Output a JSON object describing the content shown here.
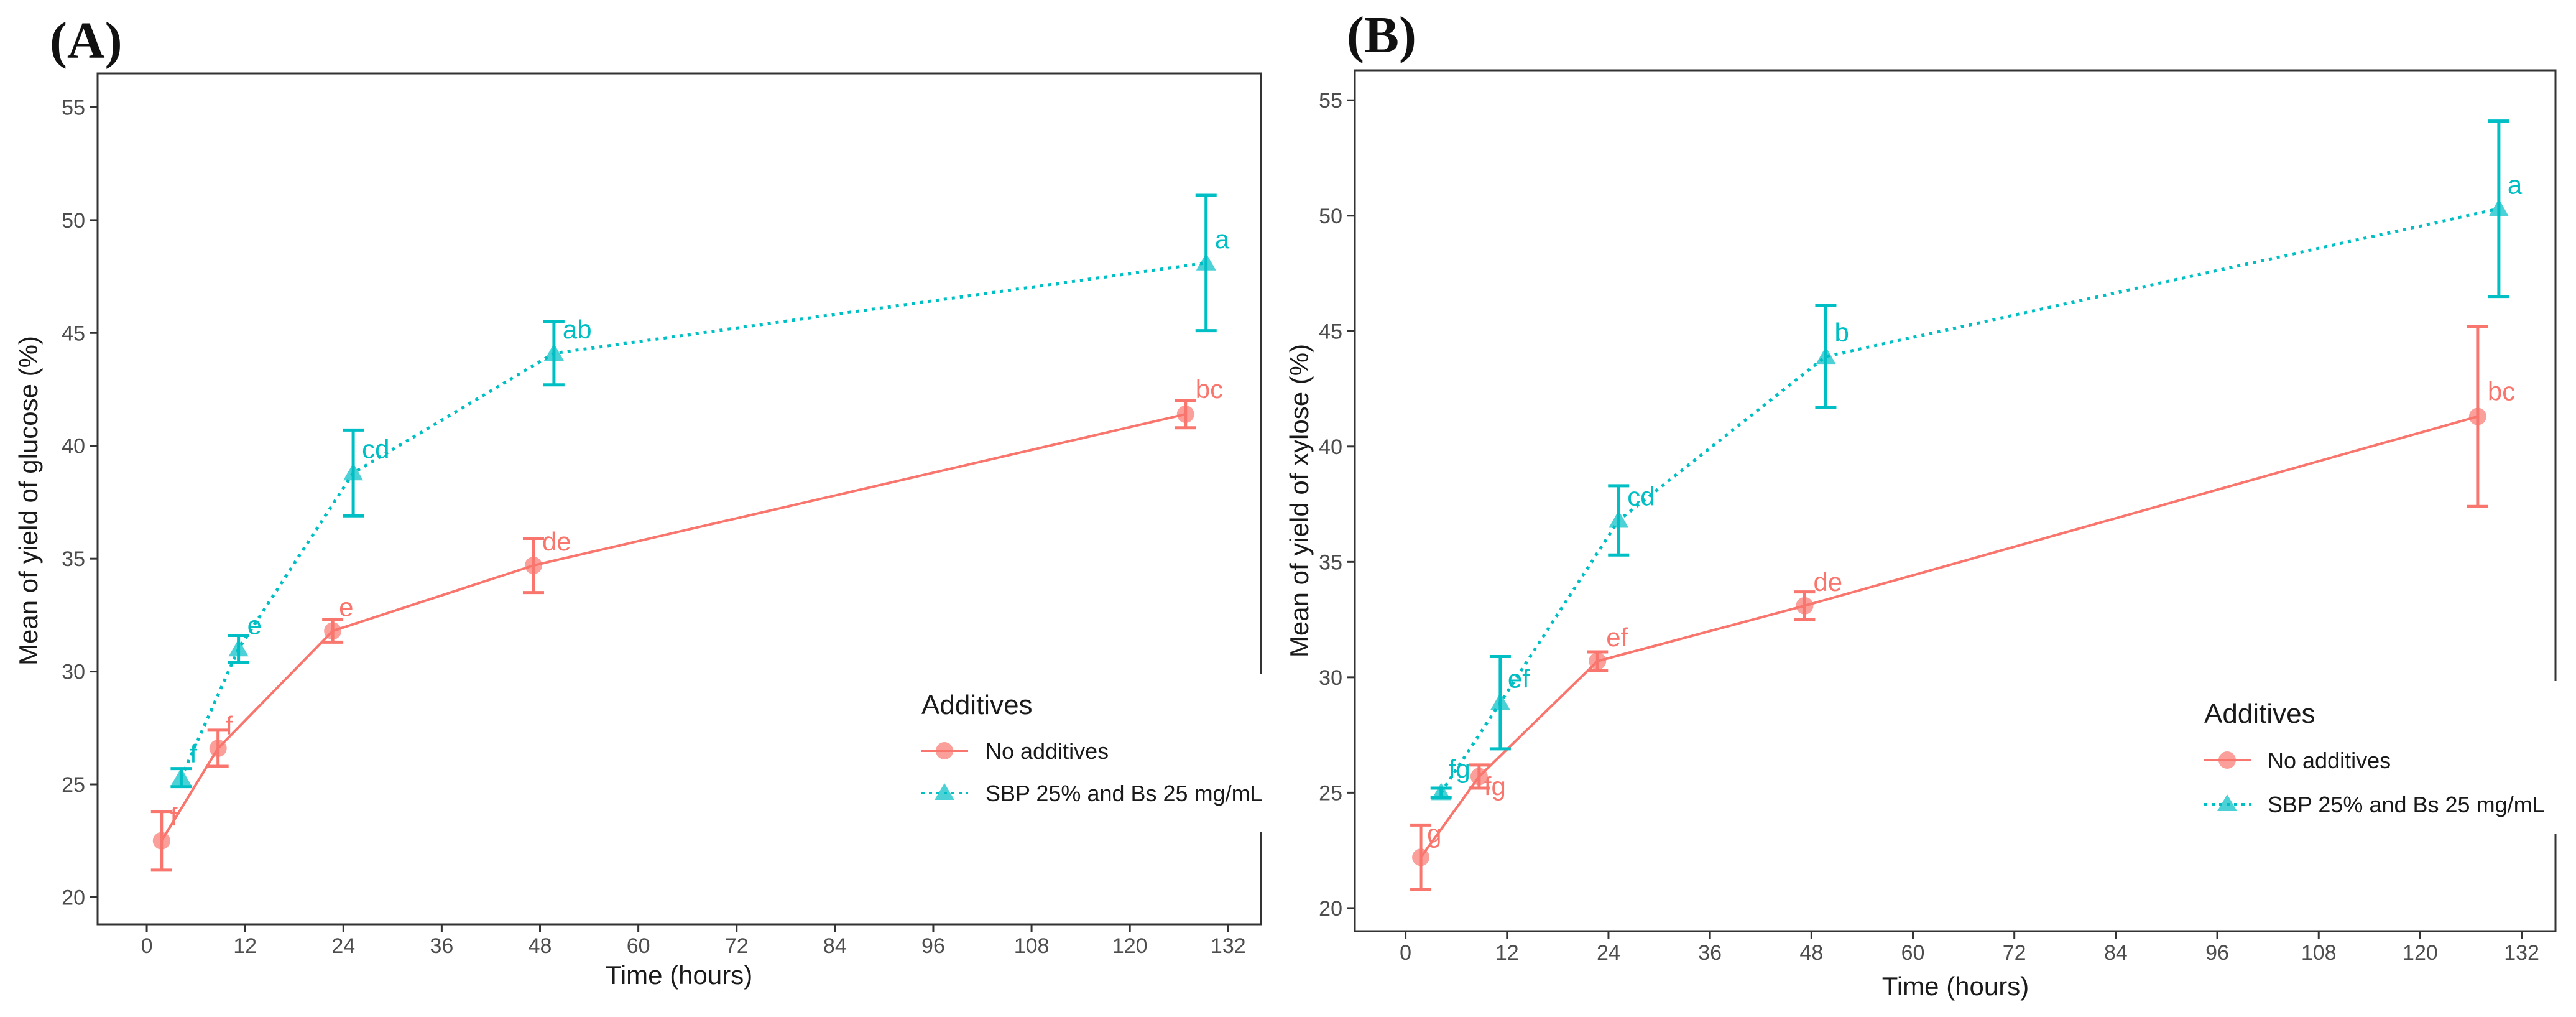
{
  "colors": {
    "no_additives": "#F8766D",
    "sbp": "#00BFC4",
    "axis": "#333333",
    "tick_text": "#4d4d4d"
  },
  "chart_data": [
    {
      "type": "line",
      "panel_label": "(A)",
      "xlabel": "Time (hours)",
      "ylabel": "Mean of yield of glucose (%)",
      "xlim": [
        -6,
        136
      ],
      "ylim": [
        18.8,
        56.5
      ],
      "x_ticks": [
        0,
        12,
        24,
        36,
        48,
        60,
        72,
        84,
        96,
        108,
        120,
        132
      ],
      "x_tick_labels": [
        "0",
        "12",
        "24",
        "36",
        "48",
        "60",
        "72",
        "84",
        "96",
        "108",
        "120",
        "132"
      ],
      "y_ticks": [
        20,
        25,
        30,
        35,
        40,
        45,
        50,
        55
      ],
      "y_tick_labels": [
        "20",
        "25",
        "30",
        "35",
        "40",
        "45",
        "50",
        "55"
      ],
      "legend": {
        "title": "Additives",
        "position": "right",
        "entries": [
          "No additives",
          "SBP 25% and Bs 25 mg/mL"
        ]
      },
      "series": [
        {
          "name": "No additives",
          "marker": "circle",
          "line_style": "solid",
          "x": [
            1.8,
            8.7,
            22.7,
            47.2,
            126.8
          ],
          "y": [
            22.5,
            26.6,
            31.8,
            34.7,
            41.4
          ],
          "err": [
            1.3,
            0.8,
            0.5,
            1.2,
            0.6
          ],
          "sig_labels": [
            "f",
            "f",
            "e",
            "de",
            "bc"
          ]
        },
        {
          "name": "SBP 25% and Bs 25 mg/mL",
          "marker": "triangle",
          "line_style": "dotted",
          "x": [
            4.2,
            11.2,
            25.2,
            49.7,
            129.3
          ],
          "y": [
            25.3,
            31.0,
            38.8,
            44.1,
            48.1
          ],
          "err": [
            0.4,
            0.6,
            1.9,
            1.4,
            3.0
          ],
          "sig_labels": [
            "f",
            "e",
            "cd",
            "ab",
            "a"
          ]
        }
      ]
    },
    {
      "type": "line",
      "panel_label": "(B)",
      "xlabel": "Time (hours)",
      "ylabel": "Mean of yield of xylose (%)",
      "xlim": [
        -6,
        136
      ],
      "ylim": [
        19.0,
        56.3
      ],
      "x_ticks": [
        0,
        12,
        24,
        36,
        48,
        60,
        72,
        84,
        96,
        108,
        120,
        132
      ],
      "x_tick_labels": [
        "0",
        "12",
        "24",
        "36",
        "48",
        "60",
        "72",
        "84",
        "96",
        "108",
        "120",
        "132"
      ],
      "y_ticks": [
        20,
        25,
        30,
        35,
        40,
        45,
        50,
        55
      ],
      "y_tick_labels": [
        "20",
        "25",
        "30",
        "35",
        "40",
        "45",
        "50",
        "55"
      ],
      "legend": {
        "title": "Additives",
        "position": "right",
        "entries": [
          "No additives",
          "SBP 25% and Bs 25 mg/mL"
        ]
      },
      "series": [
        {
          "name": "No additives",
          "marker": "circle",
          "line_style": "solid",
          "x": [
            1.8,
            8.7,
            22.7,
            47.2,
            126.8
          ],
          "y": [
            22.2,
            25.7,
            30.7,
            33.1,
            41.3
          ],
          "err": [
            1.4,
            0.5,
            0.4,
            0.6,
            3.9
          ],
          "sig_labels": [
            "g",
            "fg",
            "ef",
            "de",
            "bc"
          ]
        },
        {
          "name": "SBP 25% and Bs 25 mg/mL",
          "marker": "triangle",
          "line_style": "dotted",
          "x": [
            4.2,
            11.2,
            25.2,
            49.7,
            129.3
          ],
          "y": [
            25.0,
            28.9,
            36.8,
            43.9,
            50.3
          ],
          "err": [
            0.2,
            2.0,
            1.5,
            2.2,
            3.8
          ],
          "sig_labels": [
            "fg",
            "ef",
            "cd",
            "b",
            "a"
          ]
        }
      ]
    }
  ]
}
